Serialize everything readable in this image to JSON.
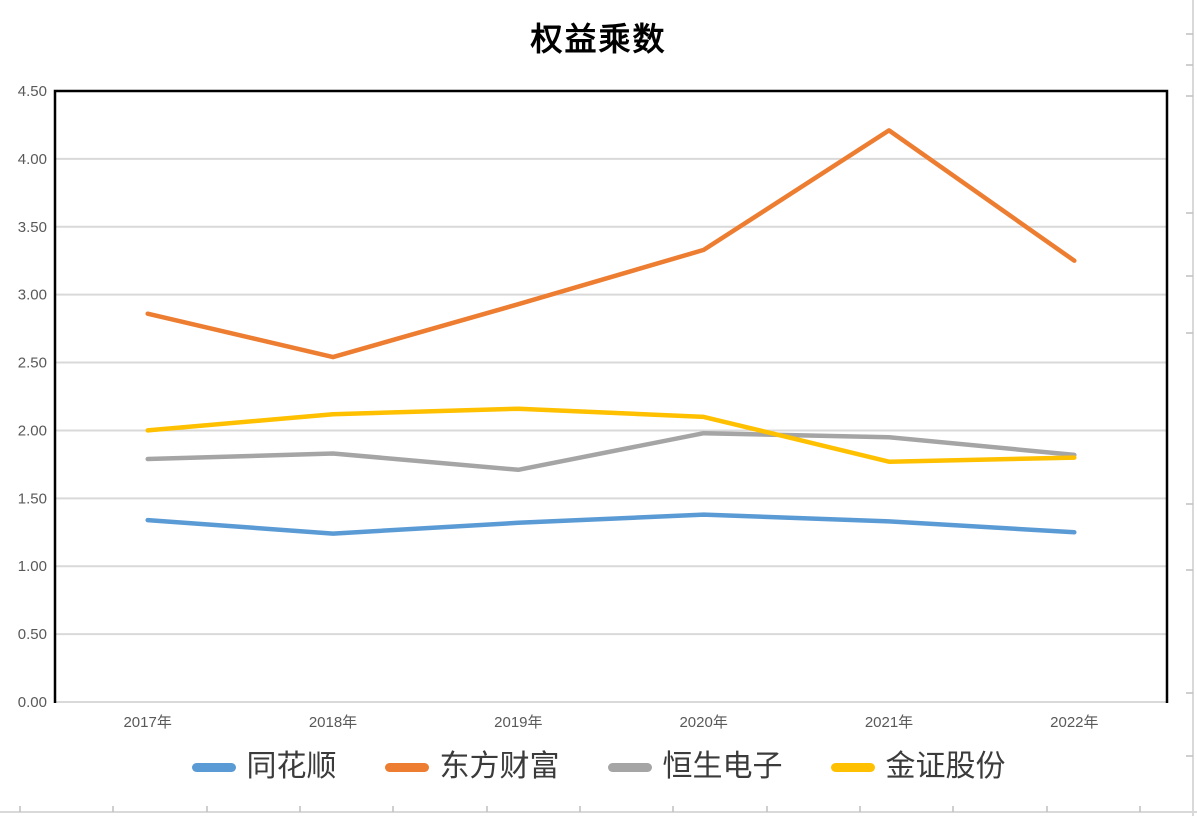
{
  "chart_data": {
    "type": "line",
    "title": "权益乘数",
    "categories": [
      "2017年",
      "2018年",
      "2019年",
      "2020年",
      "2021年",
      "2022年"
    ],
    "series": [
      {
        "name": "同花顺",
        "color": "#5B9BD5",
        "values": [
          1.34,
          1.24,
          1.32,
          1.38,
          1.33,
          1.25
        ]
      },
      {
        "name": "东方财富",
        "color": "#ED7D31",
        "values": [
          2.86,
          2.54,
          2.93,
          3.33,
          4.21,
          3.25
        ]
      },
      {
        "name": "恒生电子",
        "color": "#A5A5A5",
        "values": [
          1.79,
          1.83,
          1.71,
          1.98,
          1.95,
          1.82
        ]
      },
      {
        "name": "金证股份",
        "color": "#FFC000",
        "values": [
          2.0,
          2.12,
          2.16,
          2.1,
          1.77,
          1.8
        ]
      }
    ],
    "ylim": [
      0,
      4.5
    ],
    "ytick_step": 0.5,
    "ytick_label_format": "2dp",
    "xlabel": "",
    "ylabel": "",
    "grid": true,
    "legend_position": "bottom"
  },
  "axis_style": {
    "tick_label_color": "#595959"
  },
  "colors": {
    "background": "#FFFFFF",
    "gridline": "#D9D9D9",
    "plot_border": "#000000",
    "legend_text": "#3B3B3B",
    "sheet_line": "#D9D9D9",
    "sheet_tick": "#BFBFBF"
  }
}
